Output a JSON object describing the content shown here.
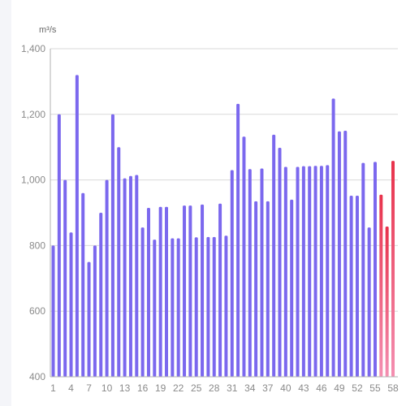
{
  "chart_data": {
    "type": "bar",
    "unit": "m³/s",
    "ylim": [
      400,
      1400
    ],
    "y_ticks": [
      "400",
      "600",
      "800",
      "1,000",
      "1,200",
      "1,400"
    ],
    "y_tick_values": [
      400,
      600,
      800,
      1000,
      1200,
      1400
    ],
    "x_ticks": [
      "1",
      "4",
      "7",
      "10",
      "13",
      "16",
      "19",
      "22",
      "25",
      "28",
      "31",
      "34",
      "37",
      "40",
      "43",
      "46",
      "49",
      "52",
      "55",
      "58"
    ],
    "x": [
      1,
      2,
      3,
      4,
      5,
      6,
      7,
      8,
      9,
      10,
      11,
      12,
      13,
      14,
      15,
      16,
      17,
      18,
      19,
      20,
      21,
      22,
      23,
      24,
      25,
      26,
      27,
      28,
      29,
      30,
      31,
      32,
      33,
      34,
      35,
      36,
      37,
      38,
      39,
      40,
      41,
      42,
      43,
      44,
      45,
      46,
      47,
      48,
      49,
      50,
      51,
      52,
      53,
      54,
      55,
      56,
      57,
      58
    ],
    "series": [
      {
        "values": [
          800,
          1200,
          1000,
          840,
          1320,
          960,
          750,
          800,
          900,
          1000,
          1200,
          1100,
          1005,
          1012,
          1015,
          855,
          915,
          818,
          918,
          918,
          822,
          822,
          922,
          922,
          825,
          925,
          826,
          826,
          928,
          830,
          1030,
          1232,
          1132,
          1033,
          935,
          1035,
          935,
          1138,
          1098,
          1040,
          940,
          1040,
          1042,
          1042,
          1043,
          1043,
          1045,
          1248,
          1148,
          1150,
          952,
          952,
          1052,
          855,
          1055,
          955,
          858,
          1058
        ],
        "highlight_from_index": 55
      }
    ],
    "colors": {
      "bar": "#7b68ee",
      "highlight_start": "#f06292",
      "highlight_end": "#e8324b",
      "grid": "#d9d9d9",
      "axis": "#b0b0b0"
    },
    "grid": true
  }
}
